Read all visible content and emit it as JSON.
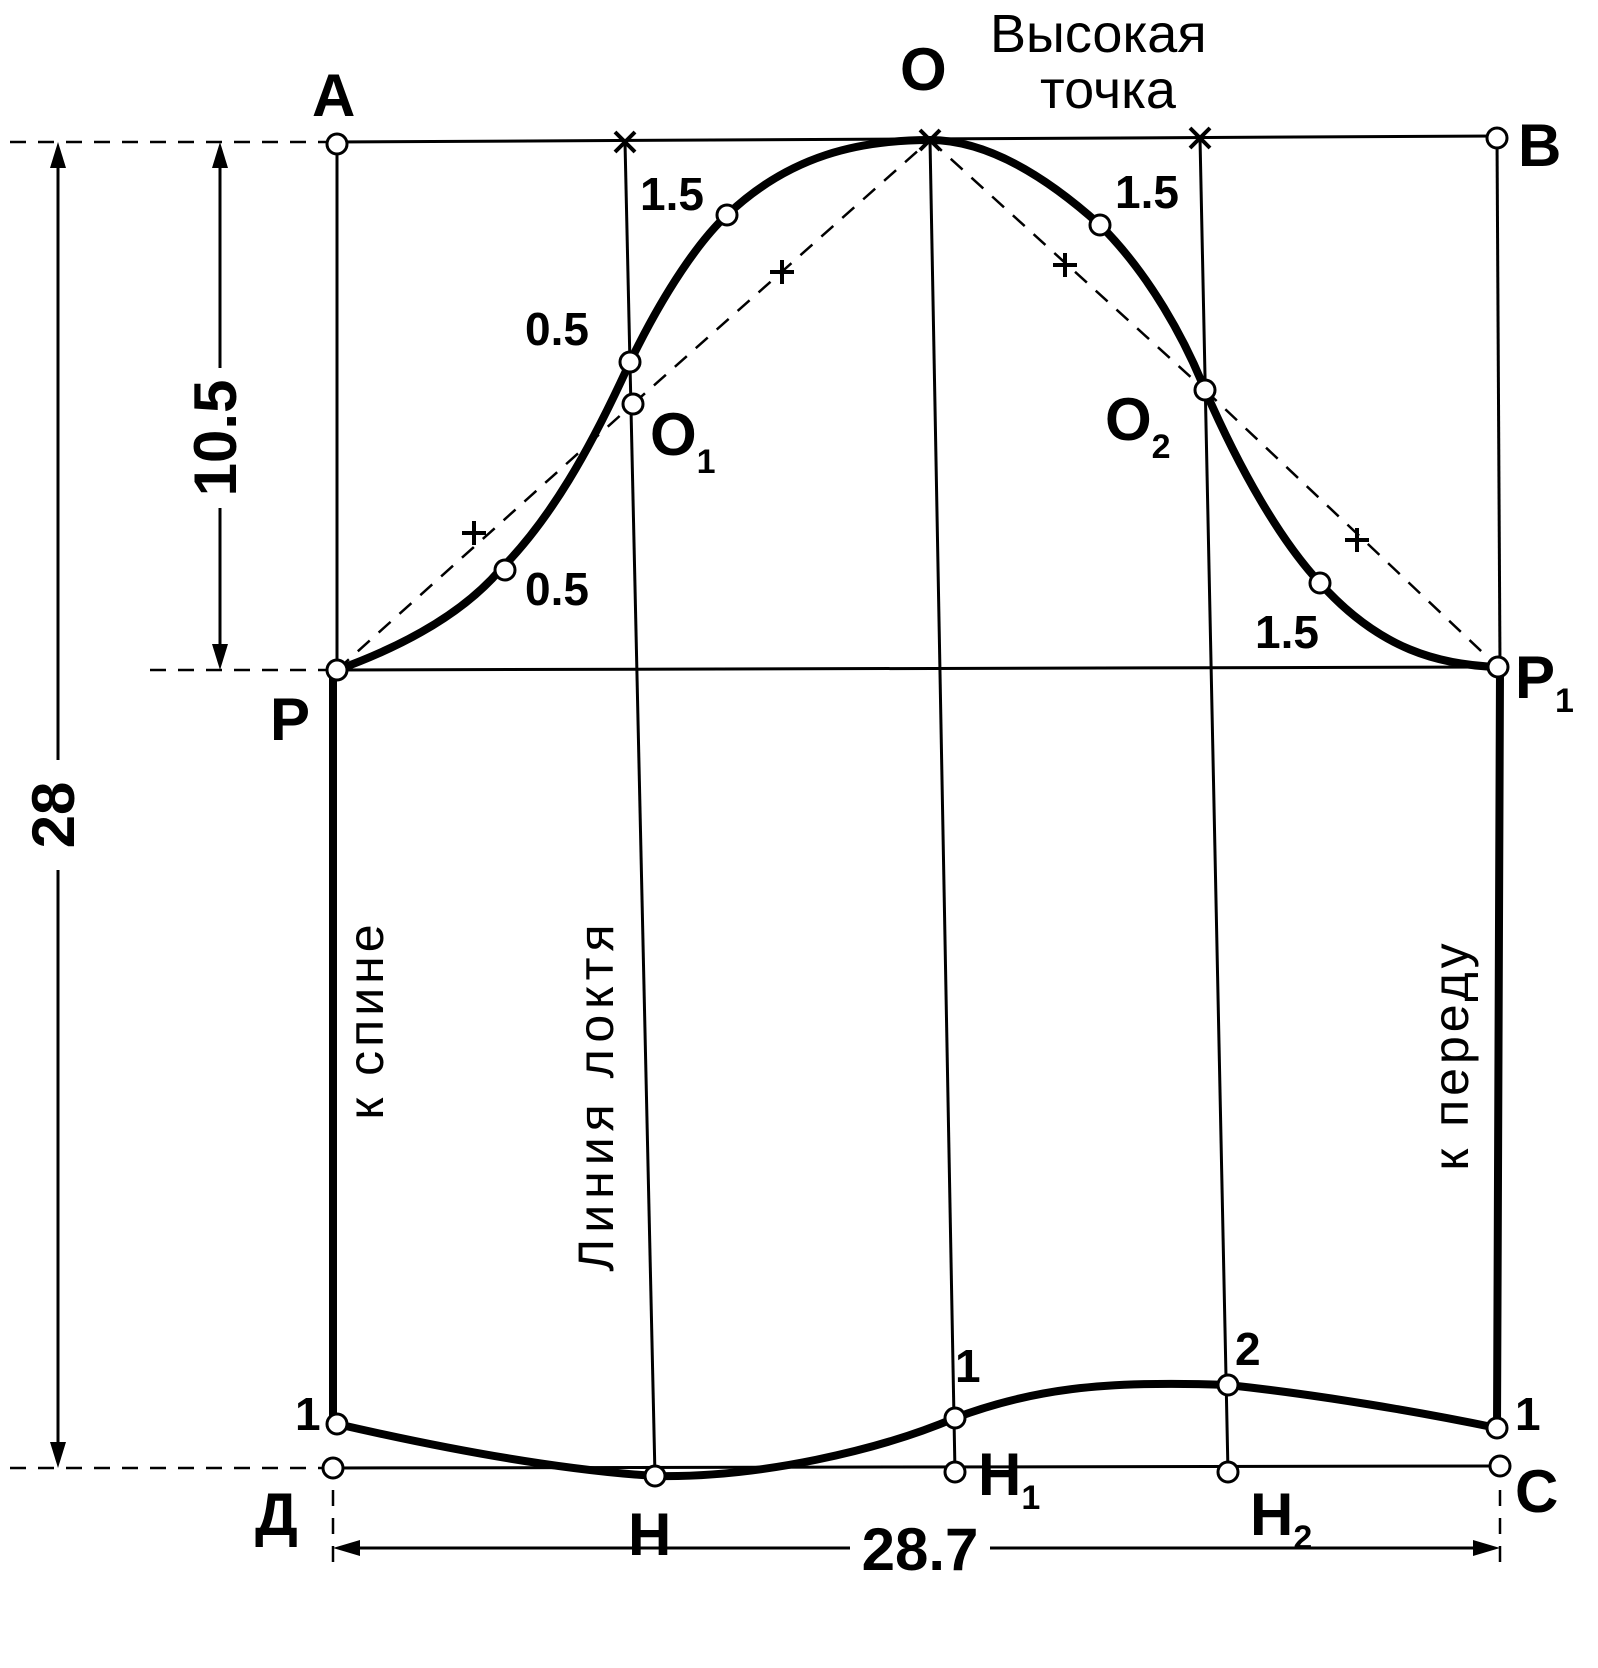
{
  "points": {
    "A": "A",
    "O": "O",
    "B": "B",
    "P": "P",
    "P1_main": "P",
    "P1_sub": "1",
    "O1_main": "O",
    "O1_sub": "1",
    "O2_main": "O",
    "O2_sub": "2",
    "D": "Д",
    "H": "Н",
    "H1_main": "Н",
    "H1_sub": "1",
    "H2_main": "Н",
    "H2_sub": "2",
    "C": "С"
  },
  "high_point": {
    "line1": "Высокая",
    "line2": "точка"
  },
  "dimensions": {
    "total_height": "28",
    "cap_height": "10.5",
    "width": "28.7"
  },
  "offsets": {
    "upper_left": "1.5",
    "mid_left": "0.5",
    "lower_left": "0.5",
    "upper_right": "1.5",
    "lower_right": "1.5",
    "bottom_left": "1",
    "bottom_mid": "1",
    "bottom_h2": "2",
    "bottom_right": "1"
  },
  "line_labels": {
    "back": "к спине",
    "elbow": "Линия локтя",
    "front": "к переду"
  }
}
